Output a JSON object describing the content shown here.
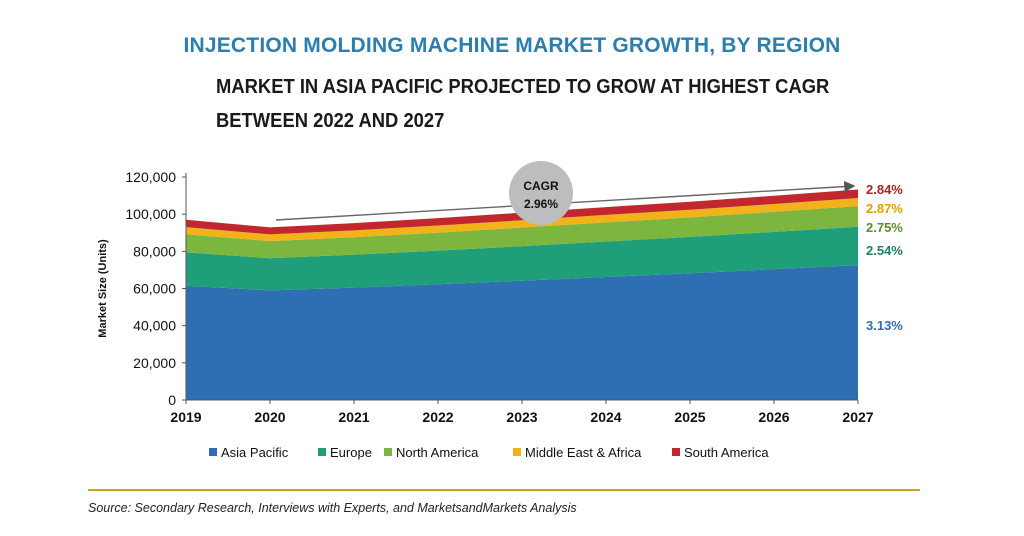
{
  "header": {
    "title": "INJECTION MOLDING MACHINE MARKET GROWTH, BY REGION",
    "subtitle": "MARKET IN ASIA PACIFIC PROJECTED TO GROW AT HIGHEST CAGR BETWEEN 2022 AND 2027"
  },
  "source": "Source: Secondary Research, Interviews with Experts, and MarketsandMarkets Analysis",
  "chart_data": {
    "type": "area",
    "stacked": true,
    "ylabel": "Market Size (Units)",
    "ylim": [
      0,
      120000
    ],
    "yticks": [
      "0",
      "20,000",
      "40,000",
      "60,000",
      "80,000",
      "100,000",
      "120,000"
    ],
    "ytick_values": [
      0,
      20000,
      40000,
      60000,
      80000,
      100000,
      120000
    ],
    "x": [
      "2019",
      "2020",
      "2021",
      "2022",
      "2023",
      "2024",
      "2025",
      "2026",
      "2027"
    ],
    "series": [
      {
        "name": "Asia Pacific",
        "color": "#2e6fb4",
        "cagr": "3.13%",
        "values": [
          61500,
          59000,
          60500,
          62300,
          64200,
          66200,
          68200,
          70400,
          72600
        ]
      },
      {
        "name": "Europe",
        "color": "#1f9e7a",
        "cagr": "2.54%",
        "values": [
          18000,
          17300,
          17700,
          18100,
          18600,
          19100,
          19600,
          20100,
          20600
        ]
      },
      {
        "name": "North America",
        "color": "#7db63f",
        "cagr": "2.75%",
        "values": [
          9700,
          9200,
          9400,
          9700,
          10000,
          10300,
          10500,
          10800,
          11100
        ]
      },
      {
        "name": "Middle East & Africa",
        "color": "#f2b21a",
        "cagr": "2.87%",
        "values": [
          3800,
          3600,
          3700,
          3800,
          3900,
          4000,
          4100,
          4200,
          4400
        ]
      },
      {
        "name": "South America",
        "color": "#c0282d",
        "cagr": "2.84%",
        "values": [
          4000,
          3800,
          3900,
          4000,
          4100,
          4200,
          4300,
          4400,
          4600
        ]
      }
    ],
    "overall_cagr": {
      "label": "CAGR",
      "value": "2.96%"
    },
    "grid": false,
    "legend_position": "bottom"
  }
}
